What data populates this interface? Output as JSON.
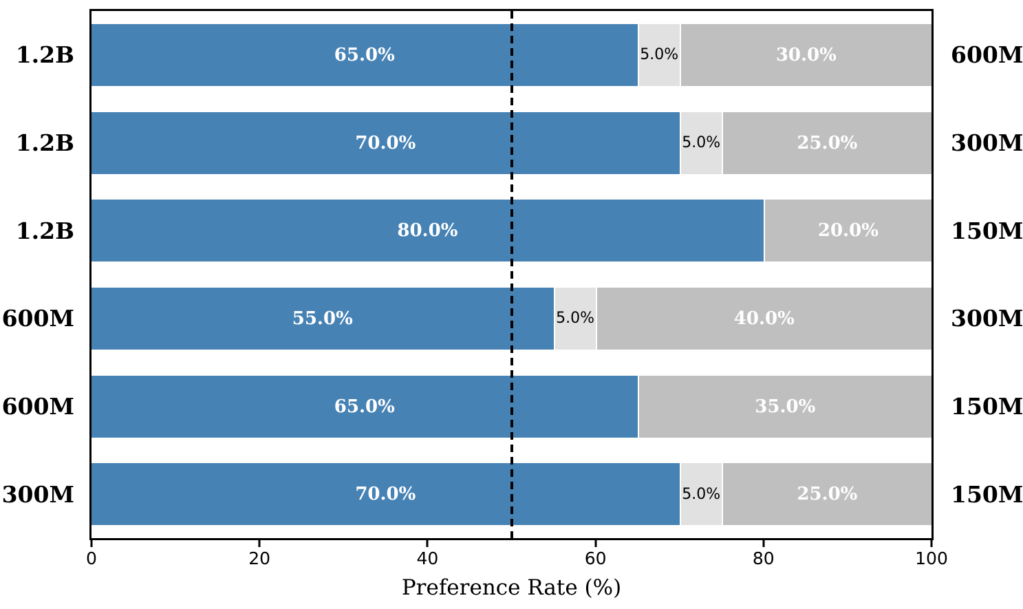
{
  "chart_data": {
    "type": "bar",
    "variant": "horizontal-stacked",
    "title": "",
    "xlabel": "Preference Rate (%)",
    "ylabel": "",
    "xlim": [
      0,
      100
    ],
    "xticks": [
      "0",
      "20",
      "40",
      "60",
      "80",
      "100"
    ],
    "xtick_values": [
      0,
      20,
      40,
      60,
      80,
      100
    ],
    "reference_line_x": 50,
    "grid": false,
    "legend": "none",
    "series_names": [
      "win",
      "tie",
      "loss"
    ],
    "rows": [
      {
        "left_label": "1.2B",
        "right_label": "600M",
        "win": 65.0,
        "tie": 5.0,
        "loss": 30.0,
        "win_label": "65.0%",
        "tie_label": "5.0%",
        "loss_label": "30.0%"
      },
      {
        "left_label": "1.2B",
        "right_label": "300M",
        "win": 70.0,
        "tie": 5.0,
        "loss": 25.0,
        "win_label": "70.0%",
        "tie_label": "5.0%",
        "loss_label": "25.0%"
      },
      {
        "left_label": "1.2B",
        "right_label": "150M",
        "win": 80.0,
        "tie": 0.0,
        "loss": 20.0,
        "win_label": "80.0%",
        "tie_label": "",
        "loss_label": "20.0%"
      },
      {
        "left_label": "600M",
        "right_label": "300M",
        "win": 55.0,
        "tie": 5.0,
        "loss": 40.0,
        "win_label": "55.0%",
        "tie_label": "5.0%",
        "loss_label": "40.0%"
      },
      {
        "left_label": "600M",
        "right_label": "150M",
        "win": 65.0,
        "tie": 0.0,
        "loss": 35.0,
        "win_label": "65.0%",
        "tie_label": "",
        "loss_label": "35.0%"
      },
      {
        "left_label": "300M",
        "right_label": "150M",
        "win": 70.0,
        "tie": 5.0,
        "loss": 25.0,
        "win_label": "70.0%",
        "tie_label": "5.0%",
        "loss_label": "25.0%"
      }
    ],
    "colors": {
      "win": "#4682B4",
      "tie": "#E1E1E1",
      "loss": "#BFBFBF",
      "reference_line": "#000000",
      "frame": "#000000",
      "background": "#FFFFFF"
    }
  }
}
